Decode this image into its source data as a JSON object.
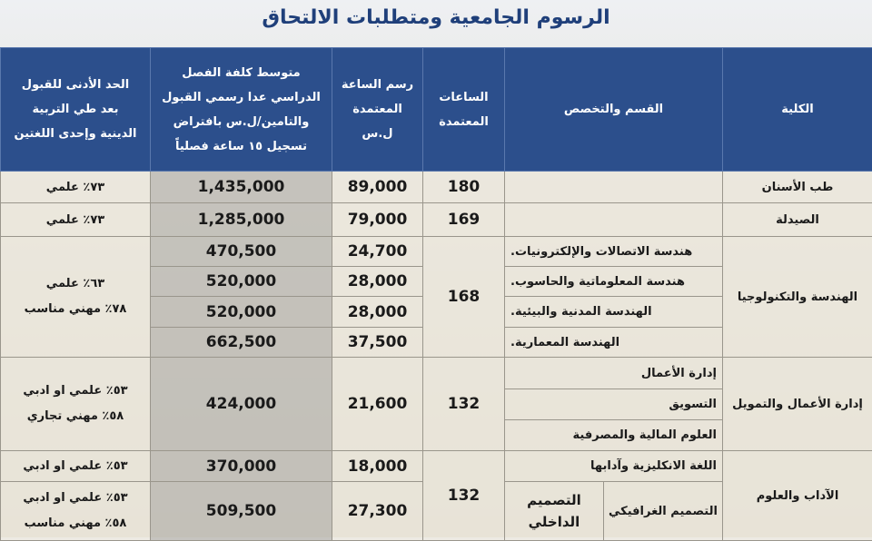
{
  "title": "الرسوم الجامعية ومتطلبات الالتحاق",
  "table": {
    "header": {
      "college": [
        "الكلية"
      ],
      "department": [
        "القسم والتخصص"
      ],
      "hours": [
        "الساعات",
        "المعتمدة"
      ],
      "fee": [
        "رسم الساعة",
        "المعتمدة",
        "ل.س"
      ],
      "cost": [
        "متوسط كلفة الفصل",
        "الدراسي عدا رسمي القبول",
        "والتامين/ل.س بافتراض",
        "تسجيل ١٥ ساعة فصلياً"
      ],
      "admission": [
        "الحد الأدنى للقبول",
        "بعد طي التربية",
        "الدينية وإحدى اللغتين"
      ]
    },
    "groups": [
      {
        "college": "طب الأسنان",
        "hours": "180",
        "fees": [
          "89,000"
        ],
        "costs": [
          "1,435,000"
        ],
        "admission": [
          "٧٣٪ علمي"
        ]
      },
      {
        "college": "الصيدلة",
        "hours": "169",
        "fees": [
          "79,000"
        ],
        "costs": [
          "1,285,000"
        ],
        "admission": [
          "٧٣٪ علمي"
        ]
      },
      {
        "college": "الهندسة والتكنولوجيا",
        "hours": "168",
        "departments": [
          "هندسة الاتصالات والإلكترونيات.",
          "هندسة المعلوماتية والحاسوب.",
          "الهندسة المدنية والبيئية.",
          "الهندسة المعمارية."
        ],
        "fees": [
          "24,700",
          "28,000",
          "28,000",
          "37,500"
        ],
        "costs": [
          "470,500",
          "520,000",
          "520,000",
          "662,500"
        ],
        "admission": [
          "٦٣٪ علمي",
          "٧٨٪ مهني مناسب"
        ]
      },
      {
        "college": "إدارة الأعمال والتمويل",
        "hours": "132",
        "departments": [
          "إدارة الأعمال",
          "التسويق",
          "العلوم المالية والمصرفية"
        ],
        "fees": [
          "21,600"
        ],
        "costs": [
          "424,000"
        ],
        "admission": [
          "٥٣٪ علمي او ادبي",
          "٥٨٪ مهني تجاري"
        ]
      },
      {
        "college": "الآداب والعلوم",
        "hours": "132",
        "rows": [
          {
            "departments": [
              "اللغة الانكليزية وآدابها"
            ],
            "fee": "18,000",
            "cost": "370,000",
            "admission": [
              "٥٣٪ علمي او ادبي"
            ]
          },
          {
            "departments": [
              "التصميم الغرافيكي",
              "التصميم الداخلي"
            ],
            "fee": "27,300",
            "cost": "509,500",
            "admission": [
              "٥٣٪ علمي او ادبي",
              "٥٨٪ مهني مناسب"
            ]
          }
        ]
      }
    ]
  }
}
